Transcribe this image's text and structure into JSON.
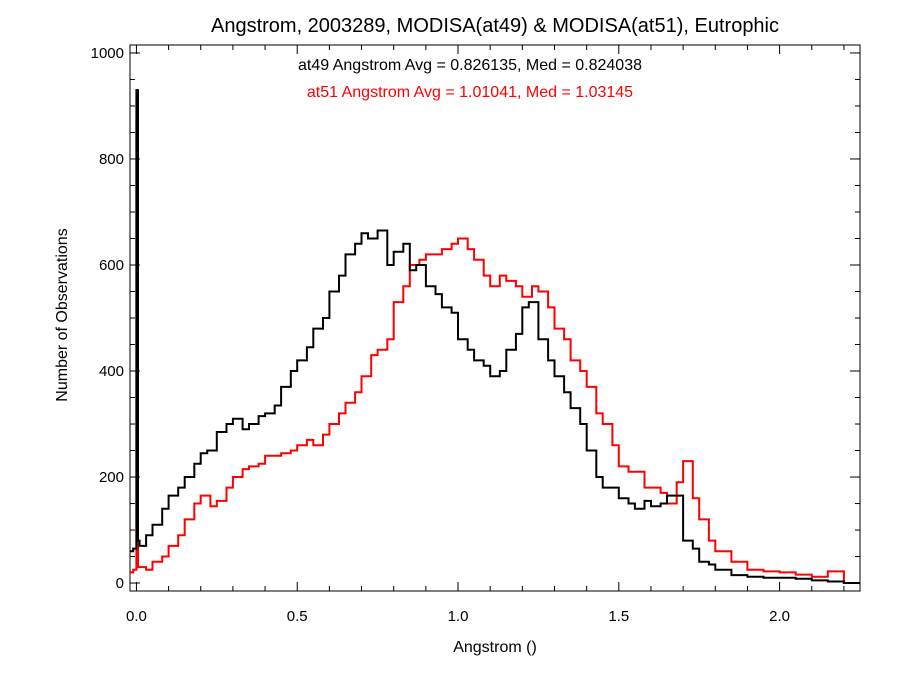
{
  "chart_data": {
    "type": "line",
    "step": true,
    "title": "Angstrom, 2003289, MODISA(at49) & MODISA(at51), Eutrophic",
    "xlabel": "Angstrom ()",
    "ylabel": "Number of Observations",
    "xlim": [
      -0.02,
      2.25
    ],
    "ylim": [
      -15,
      1015
    ],
    "xticks": [
      0.0,
      0.5,
      1.0,
      1.5,
      2.0
    ],
    "xtick_labels": [
      "0.0",
      "0.5",
      "1.0",
      "1.5",
      "2.0"
    ],
    "yticks": [
      0,
      200,
      400,
      600,
      800,
      1000
    ],
    "ytick_labels": [
      "0",
      "200",
      "400",
      "600",
      "800",
      "1000"
    ],
    "grid": false,
    "annotations": [
      {
        "text": "at49 Angstrom Avg = 0.826135, Med = 0.824038",
        "color": "#000000"
      },
      {
        "text": "at51 Angstrom Avg = 1.01041, Med = 1.03145",
        "color": "#ff0000"
      }
    ],
    "series": [
      {
        "color": "#000000",
        "x": [
          -0.02,
          -0.01,
          0.0,
          0.005,
          0.01,
          0.03,
          0.05,
          0.08,
          0.1,
          0.13,
          0.15,
          0.18,
          0.2,
          0.22,
          0.25,
          0.28,
          0.3,
          0.33,
          0.35,
          0.38,
          0.4,
          0.43,
          0.45,
          0.48,
          0.5,
          0.53,
          0.55,
          0.58,
          0.6,
          0.63,
          0.65,
          0.68,
          0.7,
          0.72,
          0.75,
          0.78,
          0.8,
          0.83,
          0.85,
          0.87,
          0.9,
          0.93,
          0.95,
          0.98,
          1.0,
          1.03,
          1.05,
          1.08,
          1.1,
          1.13,
          1.15,
          1.18,
          1.2,
          1.22,
          1.25,
          1.28,
          1.3,
          1.33,
          1.35,
          1.38,
          1.4,
          1.43,
          1.45,
          1.48,
          1.5,
          1.53,
          1.55,
          1.58,
          1.6,
          1.63,
          1.65,
          1.67,
          1.7,
          1.73,
          1.75,
          1.78,
          1.8,
          1.85,
          1.9,
          1.95,
          2.0,
          2.05,
          2.1,
          2.15,
          2.2,
          2.25
        ],
        "y": [
          60,
          65,
          930,
          80,
          70,
          90,
          110,
          140,
          165,
          180,
          200,
          225,
          245,
          250,
          285,
          300,
          310,
          290,
          300,
          315,
          320,
          335,
          370,
          400,
          420,
          445,
          480,
          500,
          550,
          580,
          620,
          640,
          660,
          650,
          665,
          600,
          625,
          640,
          590,
          600,
          560,
          545,
          520,
          510,
          460,
          440,
          420,
          410,
          390,
          400,
          440,
          470,
          520,
          530,
          460,
          420,
          390,
          360,
          330,
          300,
          250,
          200,
          180,
          180,
          160,
          150,
          140,
          155,
          145,
          150,
          165,
          165,
          80,
          65,
          40,
          35,
          25,
          15,
          12,
          10,
          10,
          8,
          5,
          3,
          0,
          0
        ]
      },
      {
        "color": "#ff0000",
        "x": [
          -0.02,
          -0.01,
          0.0,
          0.005,
          0.01,
          0.03,
          0.05,
          0.08,
          0.1,
          0.13,
          0.15,
          0.18,
          0.2,
          0.23,
          0.25,
          0.28,
          0.3,
          0.33,
          0.35,
          0.38,
          0.4,
          0.43,
          0.45,
          0.48,
          0.5,
          0.53,
          0.55,
          0.58,
          0.6,
          0.63,
          0.65,
          0.68,
          0.7,
          0.73,
          0.75,
          0.78,
          0.8,
          0.83,
          0.85,
          0.88,
          0.9,
          0.93,
          0.95,
          0.98,
          1.0,
          1.03,
          1.05,
          1.08,
          1.1,
          1.13,
          1.15,
          1.18,
          1.2,
          1.23,
          1.25,
          1.28,
          1.3,
          1.33,
          1.35,
          1.38,
          1.4,
          1.43,
          1.45,
          1.48,
          1.5,
          1.53,
          1.55,
          1.58,
          1.6,
          1.63,
          1.65,
          1.68,
          1.7,
          1.73,
          1.75,
          1.78,
          1.8,
          1.85,
          1.9,
          1.95,
          2.0,
          2.05,
          2.1,
          2.15,
          2.2,
          2.25
        ],
        "y": [
          20,
          25,
          870,
          30,
          30,
          25,
          40,
          50,
          70,
          90,
          120,
          150,
          165,
          145,
          155,
          180,
          200,
          215,
          220,
          225,
          240,
          240,
          245,
          250,
          260,
          270,
          260,
          280,
          300,
          320,
          340,
          360,
          390,
          430,
          440,
          460,
          530,
          560,
          600,
          610,
          620,
          620,
          630,
          640,
          650,
          630,
          610,
          580,
          560,
          580,
          570,
          560,
          540,
          560,
          550,
          520,
          480,
          460,
          420,
          400,
          370,
          320,
          300,
          260,
          220,
          210,
          210,
          180,
          180,
          170,
          150,
          190,
          230,
          160,
          120,
          80,
          60,
          40,
          25,
          22,
          20,
          16,
          12,
          22,
          0,
          0
        ]
      }
    ]
  }
}
